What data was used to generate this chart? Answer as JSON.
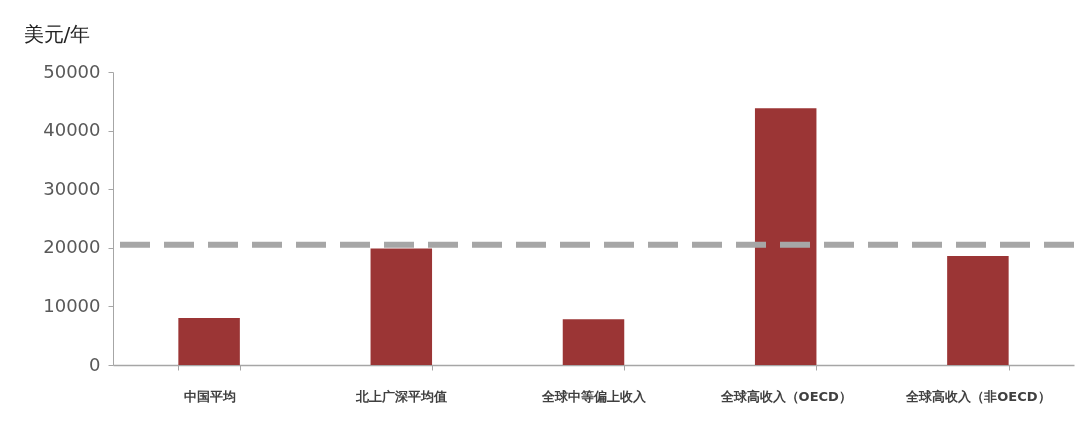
{
  "chart_data": {
    "type": "bar",
    "ylabel": "美元/年",
    "categories": [
      "中国平均",
      "北上广深平均值",
      "全球中等偏上收入",
      "全球高收入（OECD）",
      "全球高收入（非OECD）"
    ],
    "values": [
      8000,
      19900,
      7800,
      43800,
      18600
    ],
    "color": "#9b3535",
    "ylim": [
      0,
      50000
    ],
    "yticks": [
      0,
      10000,
      20000,
      30000,
      40000,
      50000
    ],
    "ref_lines": [
      {
        "axis": "y",
        "value": 20500,
        "color": "#a6a6a6",
        "line_style": "dashed"
      }
    ]
  }
}
